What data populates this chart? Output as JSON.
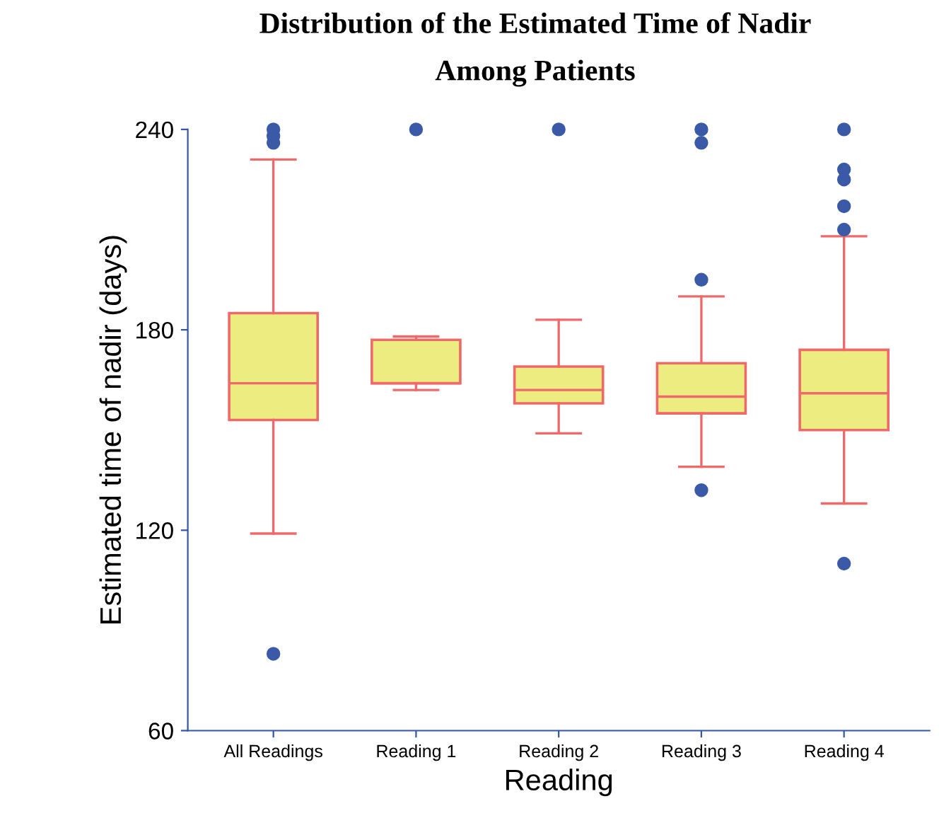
{
  "chart_data": {
    "type": "box",
    "title": "Distribution of the Estimated Time of Nadir\nAmong Patients",
    "xlabel": "Reading",
    "ylabel": "Estimated time of nadir (days)",
    "categories": [
      "All Readings",
      "Reading 1",
      "Reading 2",
      "Reading 3",
      "Reading 4"
    ],
    "boxes": [
      {
        "low": 119,
        "q1": 153,
        "median": 164,
        "q3": 185,
        "high": 231,
        "outliers": [
          240,
          238,
          236,
          83
        ]
      },
      {
        "low": 162,
        "q1": 164,
        "median": 164,
        "q3": 177,
        "high": 178,
        "outliers": [
          240
        ]
      },
      {
        "low": 149,
        "q1": 158,
        "median": 162,
        "q3": 169,
        "high": 183,
        "outliers": [
          240
        ]
      },
      {
        "low": 139,
        "q1": 155,
        "median": 160,
        "q3": 170,
        "high": 190,
        "outliers": [
          240,
          236,
          195,
          132
        ]
      },
      {
        "low": 128,
        "q1": 150,
        "median": 161,
        "q3": 174,
        "high": 208,
        "outliers": [
          240,
          228,
          225,
          217,
          210,
          110
        ]
      }
    ],
    "color": "#ecec80",
    "ylim": [
      60,
      240
    ],
    "yticks": [
      60,
      120,
      180,
      240
    ],
    "grid": false
  }
}
